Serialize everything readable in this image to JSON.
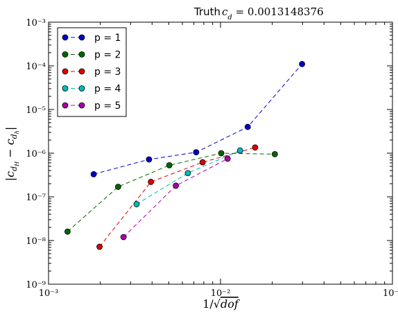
{
  "chart_data": {
    "type": "line",
    "title_prefix": "Truth ",
    "title_math": "c_d = 0.0013148376",
    "xlabel": "1/√(dof)",
    "ylabel": "|c_dH − c_dh|",
    "x_scale": "log",
    "y_scale": "log",
    "xlim": [
      0.001,
      0.1
    ],
    "ylim": [
      1e-09,
      0.001
    ],
    "x_ticks": [
      {
        "value": 0.001,
        "label": "10⁻³"
      },
      {
        "value": 0.01,
        "label": "10⁻²"
      },
      {
        "value": 0.1,
        "label": "10⁻¹"
      }
    ],
    "y_ticks": [
      {
        "value": 1e-09,
        "label": "10⁻⁹"
      },
      {
        "value": 1e-08,
        "label": "10⁻⁸"
      },
      {
        "value": 1e-07,
        "label": "10⁻⁷"
      },
      {
        "value": 1e-06,
        "label": "10⁻⁶"
      },
      {
        "value": 1e-05,
        "label": "10⁻⁵"
      },
      {
        "value": 0.0001,
        "label": "10⁻⁴"
      },
      {
        "value": 0.001,
        "label": "10⁻³"
      }
    ],
    "grid": false,
    "legend_position": "top-left",
    "series": [
      {
        "name": "p = 1",
        "color": "#0000cc",
        "x": [
          0.00183,
          0.00384,
          0.00722,
          0.0144,
          0.0298
        ],
        "y": [
          3.3e-07,
          7.2e-07,
          1.05e-06,
          4e-06,
          0.00011
        ]
      },
      {
        "name": "p = 2",
        "color": "#006600",
        "x": [
          0.00129,
          0.00254,
          0.00504,
          0.0101,
          0.0207
        ],
        "y": [
          1.6e-08,
          1.7e-07,
          5.3e-07,
          1e-06,
          9.5e-07
        ]
      },
      {
        "name": "p = 3",
        "color": "#dd0000",
        "x": [
          0.00198,
          0.00394,
          0.00787,
          0.0159
        ],
        "y": [
          7.2e-09,
          2.2e-07,
          6.2e-07,
          1.35e-06
        ]
      },
      {
        "name": "p = 4",
        "color": "#00bbbb",
        "x": [
          0.00325,
          0.00646,
          0.013
        ],
        "y": [
          6.8e-08,
          3.5e-07,
          1.15e-06
        ]
      },
      {
        "name": "p = 5",
        "color": "#aa00aa",
        "x": [
          0.00273,
          0.0055,
          0.011
        ],
        "y": [
          1.2e-08,
          1.8e-07,
          7.5e-07
        ]
      }
    ]
  }
}
